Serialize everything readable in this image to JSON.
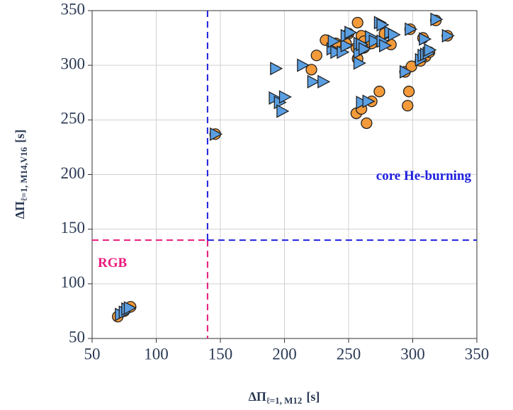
{
  "chart_data": {
    "type": "scatter",
    "xlabel": {
      "main": "ΔΠ",
      "sub": "ℓ=1, M12",
      "unit": "[s]"
    },
    "ylabel": {
      "main": "ΔΠ",
      "sub": "ℓ=1, M14,V16",
      "unit": "[s]"
    },
    "xlim": [
      50,
      350
    ],
    "ylim": [
      50,
      350
    ],
    "xticks": [
      50,
      100,
      150,
      200,
      250,
      300,
      350
    ],
    "yticks": [
      50,
      100,
      150,
      200,
      250,
      300,
      350
    ],
    "grid": true,
    "boundary": {
      "x": 140,
      "y": 140
    },
    "regions": [
      {
        "label": "RGB",
        "color": "#e8197a"
      },
      {
        "label": "core He-burning",
        "color": "#1f1fe0"
      }
    ],
    "series": [
      {
        "color": "#f39a3a",
        "marker": "circle",
        "x": [
          70,
          75,
          80,
          146,
          221,
          225,
          232,
          240,
          250,
          257,
          257,
          260,
          262,
          256,
          260,
          264,
          268,
          274,
          278,
          283,
          294,
          296,
          297,
          299,
          298,
          306,
          310,
          313,
          318,
          327,
          308,
          256,
          262,
          248,
          268
        ],
        "values": [
          70,
          75,
          79,
          237,
          296,
          309,
          323,
          320,
          329,
          339,
          306,
          327,
          322,
          256,
          260,
          247,
          267,
          276,
          329,
          319,
          294,
          263,
          276,
          299,
          333,
          304,
          308,
          312,
          341,
          327,
          325,
          316,
          316,
          320,
          320
        ]
      },
      {
        "color": "#5b9fe3",
        "marker": "triangle",
        "x": [
          72,
          75,
          77,
          79,
          146,
          192,
          193,
          196,
          198,
          200,
          214,
          222,
          230,
          237,
          240,
          238,
          245,
          248,
          248,
          251,
          258,
          258,
          258,
          260,
          260,
          265,
          262,
          267,
          270,
          274,
          276,
          276,
          278,
          282,
          285,
          294,
          298,
          306,
          308,
          310,
          312,
          313,
          318,
          309,
          327
        ],
        "values": [
          72,
          74,
          77,
          78,
          237,
          270,
          297,
          266,
          258,
          271,
          300,
          285,
          285,
          315,
          312,
          322,
          312,
          318,
          327,
          330,
          312,
          302,
          320,
          319,
          266,
          267,
          315,
          326,
          322,
          339,
          337,
          322,
          318,
          330,
          328,
          294,
          333,
          305,
          309,
          310,
          311,
          314,
          342,
          324,
          327
        ]
      }
    ]
  }
}
